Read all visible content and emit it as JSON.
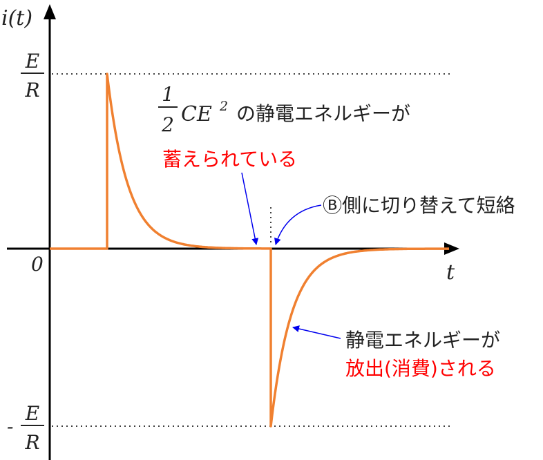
{
  "axes": {
    "y_label": "i(t)",
    "x_label": "t",
    "origin_label": "0",
    "top_level_num": "E",
    "top_level_den": "R",
    "bottom_level_sign": "-",
    "bottom_level_num": "E",
    "bottom_level_den": "R"
  },
  "annotations": {
    "stored_fraction_num": "1",
    "stored_fraction_den": "2",
    "stored_expr": "CE",
    "stored_expr_exp": "2",
    "stored_line1_rest": "の静電エネルギーが",
    "stored_line2": "蓄えられている",
    "switch_label": "Ⓑ側に切り替えて短絡",
    "release_line1": "静電エネルギーが",
    "release_line2": "放出(消費)される"
  },
  "colors": {
    "curve": "#f08030",
    "arrow": "#0000ee",
    "emphasis": "#ff0000",
    "axis": "#000000"
  }
}
